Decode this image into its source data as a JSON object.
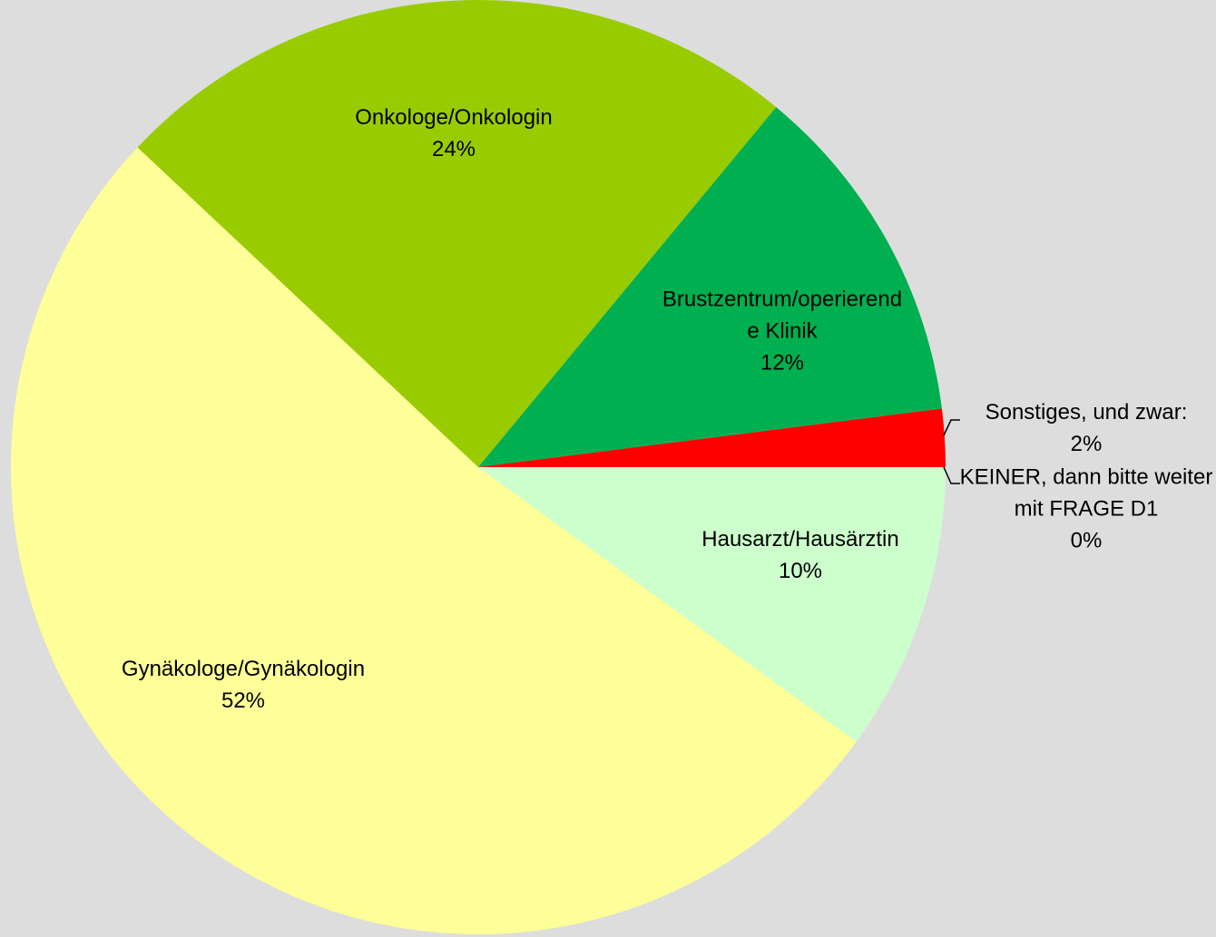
{
  "chart_data": {
    "type": "pie",
    "categories": [
      "Hausarzt/Hausärztin",
      "Gynäkologe/Gynäkologin",
      "Onkologe/Onkologin",
      "Brustzentrum/operierende Klinik",
      "Sonstiges, und zwar:",
      "KEINER, dann bitte weiter mit FRAGE D1"
    ],
    "values": [
      10,
      52,
      24,
      12,
      2,
      0
    ],
    "value_labels": [
      "10%",
      "52%",
      "24%",
      "12%",
      "2%",
      "0%"
    ],
    "colors": [
      "#ccffcc",
      "#ffff99",
      "#99cc00",
      "#00b050",
      "#ff0000",
      "#9999ff"
    ]
  }
}
